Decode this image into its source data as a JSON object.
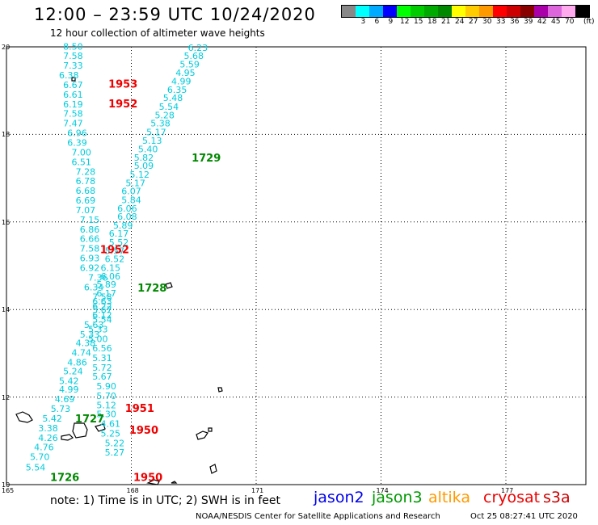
{
  "header": {
    "title": "12:00 – 23:59 UTC 10/24/2020",
    "subtitle": "12 hour collection of altimeter wave heights"
  },
  "legend": {
    "unit": "(ft)",
    "swatches": [
      {
        "color": "#888888",
        "label": ""
      },
      {
        "color": "#00ffff",
        "label": "3"
      },
      {
        "color": "#00aaff",
        "label": "6"
      },
      {
        "color": "#0000ff",
        "label": "9"
      },
      {
        "color": "#00ff00",
        "label": "12"
      },
      {
        "color": "#00cc00",
        "label": "15"
      },
      {
        "color": "#00aa00",
        "label": "18"
      },
      {
        "color": "#008800",
        "label": "21"
      },
      {
        "color": "#ffff00",
        "label": "24"
      },
      {
        "color": "#ffcc00",
        "label": "27"
      },
      {
        "color": "#ff9900",
        "label": "30"
      },
      {
        "color": "#ff0000",
        "label": "33"
      },
      {
        "color": "#cc0000",
        "label": "36"
      },
      {
        "color": "#880000",
        "label": "39"
      },
      {
        "color": "#aa00aa",
        "label": "42"
      },
      {
        "color": "#dd66dd",
        "label": "45"
      },
      {
        "color": "#ffaaee",
        "label": "70"
      },
      {
        "color": "#000000",
        "label": ""
      }
    ]
  },
  "axes": {
    "lat_ticks": [
      "20",
      "18",
      "16",
      "14",
      "12",
      "10"
    ],
    "lon_ticks": [
      "165",
      "168",
      "171",
      "174",
      "177"
    ],
    "lat_range": [
      10,
      20
    ],
    "lon_range": [
      165,
      179
    ]
  },
  "colors": {
    "wave_value": "#00ccdd",
    "time_red": "#ee0000",
    "time_green": "#008800",
    "land": "#000000"
  },
  "tracks": [
    {
      "name": "track-a",
      "values": [
        "8.50",
        "7.58",
        "7.33",
        "6.38",
        "6.67",
        "6.61",
        "6.19",
        "7.58",
        "7.47",
        "6.96",
        "6.39",
        "7.00",
        "6.51",
        "7.28",
        "6.78",
        "6.68",
        "6.69",
        "7.07",
        "7.15",
        "6.86",
        "6.66",
        "7.58",
        "6.93",
        "6.92",
        "7.36",
        "6.34",
        "7.58",
        "6.22",
        "6.12",
        "5.63",
        "5.33",
        "4.38",
        "4.74",
        "4.86",
        "5.24",
        "5.42",
        "4.99",
        "4.69",
        "5.73",
        "5.42",
        "3.38",
        "4.26",
        "4.76",
        "5.70",
        "5.54"
      ],
      "points": [
        [
          166.6,
          19.94
        ],
        [
          166.6,
          19.72
        ],
        [
          166.6,
          19.5
        ],
        [
          166.5,
          19.28
        ],
        [
          166.6,
          19.06
        ],
        [
          166.6,
          18.84
        ],
        [
          166.6,
          18.62
        ],
        [
          166.6,
          18.4
        ],
        [
          166.6,
          18.18
        ],
        [
          166.7,
          17.96
        ],
        [
          166.7,
          17.74
        ],
        [
          166.8,
          17.52
        ],
        [
          166.8,
          17.3
        ],
        [
          166.9,
          17.08
        ],
        [
          166.9,
          16.86
        ],
        [
          166.9,
          16.64
        ],
        [
          166.9,
          16.42
        ],
        [
          166.9,
          16.2
        ],
        [
          167.0,
          15.98
        ],
        [
          167.0,
          15.76
        ],
        [
          167.0,
          15.54
        ],
        [
          167.0,
          15.32
        ],
        [
          167.0,
          15.1
        ],
        [
          167.0,
          14.88
        ],
        [
          167.2,
          14.66
        ],
        [
          167.1,
          14.44
        ],
        [
          167.3,
          14.22
        ],
        [
          167.3,
          14.0
        ],
        [
          167.3,
          13.8
        ],
        [
          167.1,
          13.58
        ],
        [
          167.0,
          13.36
        ],
        [
          166.9,
          13.16
        ],
        [
          166.8,
          12.94
        ],
        [
          166.7,
          12.72
        ],
        [
          166.6,
          12.52
        ],
        [
          166.5,
          12.3
        ],
        [
          166.5,
          12.1
        ],
        [
          166.4,
          11.88
        ],
        [
          166.3,
          11.66
        ],
        [
          166.1,
          11.44
        ],
        [
          166.0,
          11.22
        ],
        [
          166.0,
          11.0
        ],
        [
          165.9,
          10.78
        ],
        [
          165.8,
          10.56
        ],
        [
          165.7,
          10.32
        ]
      ]
    },
    {
      "name": "track-b",
      "values": [
        "6.23",
        "5.68",
        "5.59",
        "4.95",
        "4.99",
        "6.35",
        "5.48",
        "5.54",
        "5.28",
        "5.38",
        "5.17",
        "5.13",
        "5.40",
        "5.82",
        "5.09",
        "5.12",
        "5.17",
        "6.07",
        "5.84",
        "6.06",
        "6.08",
        "5.89",
        "6.17",
        "5.52",
        "5.57",
        "6.52",
        "6.15",
        "6.06",
        "5.89",
        "6.17",
        "6.63",
        "5.67",
        "5.54",
        "5.33",
        "5.00",
        "6.56",
        "5.31",
        "5.72",
        "5.67",
        "5.90",
        "5.70",
        "5.12",
        "5.30",
        "4.61",
        "5.25",
        "5.22",
        "5.27"
      ],
      "points": [
        [
          169.6,
          19.91
        ],
        [
          169.5,
          19.72
        ],
        [
          169.4,
          19.53
        ],
        [
          169.3,
          19.34
        ],
        [
          169.2,
          19.14
        ],
        [
          169.1,
          18.95
        ],
        [
          169.0,
          18.76
        ],
        [
          168.9,
          18.56
        ],
        [
          168.8,
          18.37
        ],
        [
          168.7,
          18.18
        ],
        [
          168.6,
          17.98
        ],
        [
          168.5,
          17.79
        ],
        [
          168.4,
          17.59
        ],
        [
          168.3,
          17.4
        ],
        [
          168.3,
          17.21
        ],
        [
          168.2,
          17.01
        ],
        [
          168.1,
          16.82
        ],
        [
          168.0,
          16.63
        ],
        [
          168.0,
          16.43
        ],
        [
          167.9,
          16.24
        ],
        [
          167.9,
          16.05
        ],
        [
          167.8,
          15.85
        ],
        [
          167.7,
          15.66
        ],
        [
          167.7,
          15.46
        ],
        [
          167.6,
          15.27
        ],
        [
          167.6,
          15.08
        ],
        [
          167.5,
          14.88
        ],
        [
          167.5,
          14.69
        ],
        [
          167.4,
          14.5
        ],
        [
          167.4,
          14.3
        ],
        [
          167.3,
          14.11
        ],
        [
          167.3,
          13.92
        ],
        [
          167.3,
          13.7
        ],
        [
          167.2,
          13.48
        ],
        [
          167.2,
          13.26
        ],
        [
          167.3,
          13.04
        ],
        [
          167.3,
          12.82
        ],
        [
          167.3,
          12.6
        ],
        [
          167.3,
          12.4
        ],
        [
          167.4,
          12.18
        ],
        [
          167.4,
          11.96
        ],
        [
          167.4,
          11.74
        ],
        [
          167.4,
          11.54
        ],
        [
          167.5,
          11.32
        ],
        [
          167.5,
          11.1
        ],
        [
          167.6,
          10.88
        ],
        [
          167.6,
          10.66
        ]
      ]
    }
  ],
  "time_labels": [
    {
      "text": "1953",
      "lon": 167.8,
      "lat": 19.07,
      "color": "#ee0000"
    },
    {
      "text": "1952",
      "lon": 167.8,
      "lat": 18.62,
      "color": "#ee0000"
    },
    {
      "text": "1729",
      "lon": 169.8,
      "lat": 17.38,
      "color": "#008800"
    },
    {
      "text": "1952",
      "lon": 167.6,
      "lat": 15.29,
      "color": "#ee0000"
    },
    {
      "text": "1728",
      "lon": 168.5,
      "lat": 14.41,
      "color": "#008800"
    },
    {
      "text": "1951",
      "lon": 168.2,
      "lat": 11.66,
      "color": "#ee0000"
    },
    {
      "text": "1727",
      "lon": 167.0,
      "lat": 11.42,
      "color": "#008800"
    },
    {
      "text": "1950",
      "lon": 168.3,
      "lat": 11.16,
      "color": "#ee0000"
    },
    {
      "text": "1726",
      "lon": 166.4,
      "lat": 10.08,
      "color": "#008800"
    },
    {
      "text": "1950",
      "lon": 168.4,
      "lat": 10.08,
      "color": "#ee0000"
    }
  ],
  "footer": {
    "note": "note:  1) Time is in UTC;  2) SWH is in feet",
    "satellites": [
      {
        "name": "jason2",
        "color": "#0000ee"
      },
      {
        "name": "jason3",
        "color": "#009900"
      },
      {
        "name": "altika",
        "color": "#ff9900"
      },
      {
        "name": "cryosat",
        "color": "#ee0000"
      },
      {
        "name": "s3a",
        "color": "#cc0000"
      }
    ],
    "credit": "NOAA/NESDIS Center for Satellite Applications and Research",
    "timestamp": "Oct 25 08:27:41 UTC 2020"
  }
}
